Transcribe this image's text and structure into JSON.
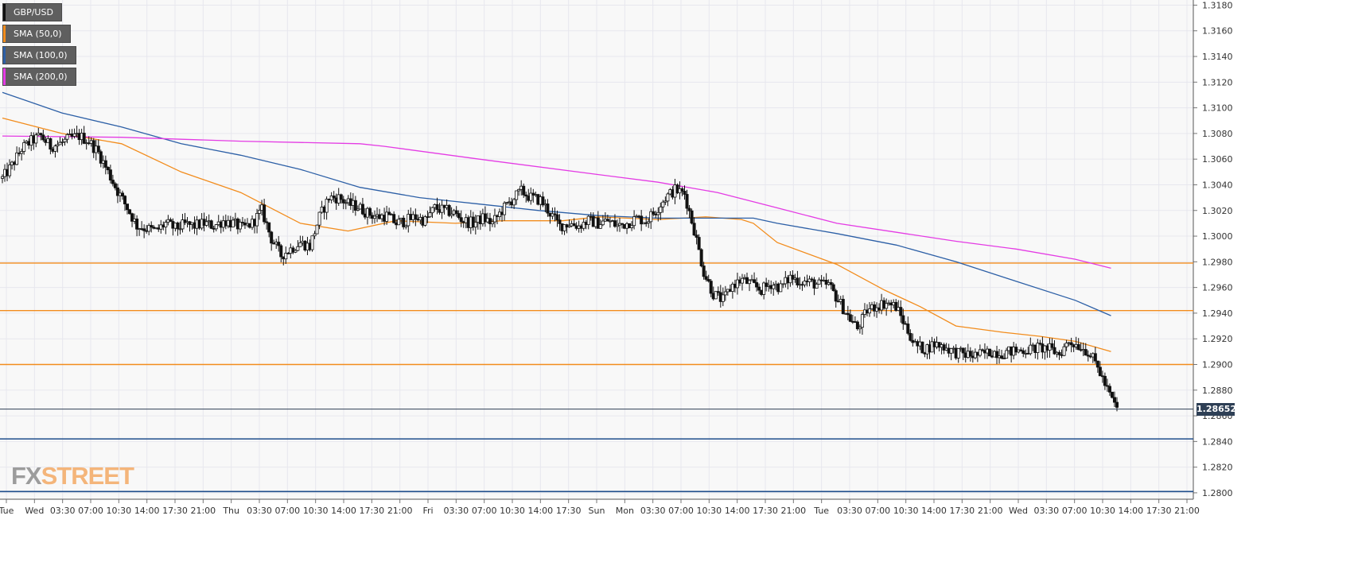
{
  "instrument": "GBP/USD",
  "legend": [
    {
      "label": "GBP/USD",
      "color": "#111111"
    },
    {
      "label": "SMA (50,0)",
      "color": "#f28c1c"
    },
    {
      "label": "SMA (100,0)",
      "color": "#2c5fa6"
    },
    {
      "label": "SMA (200,0)",
      "color": "#e43be4"
    }
  ],
  "watermark": {
    "fx": "FX",
    "street": "STREET"
  },
  "last_price_label": "1.28652",
  "colors": {
    "background": "#f8f8f8",
    "grid": "#e7e7ee",
    "candle_up": "#ffffff",
    "candle_down": "#111111",
    "sma50": "#f28c1c",
    "sma100": "#2c5fa6",
    "sma200": "#e43be4",
    "resistance": "#f28c1c",
    "support": "#1f4e8c"
  },
  "chart_data": {
    "type": "candlestick",
    "title": "",
    "ylim": [
      1.2795,
      1.3184
    ],
    "y_ticks": [
      "1.2800",
      "1.2820",
      "1.2840",
      "1.2860",
      "1.2880",
      "1.2900",
      "1.2920",
      "1.2940",
      "1.2960",
      "1.2980",
      "1.3000",
      "1.3020",
      "1.3040",
      "1.3060",
      "1.3080",
      "1.3100",
      "1.3120",
      "1.3140",
      "1.3160",
      "1.3180"
    ],
    "x_ticks": [
      "Tue",
      "Wed",
      "03:30",
      "07:00",
      "10:30",
      "14:00",
      "17:30",
      "21:00",
      "Thu",
      "03:30",
      "07:00",
      "10:30",
      "14:00",
      "17:30",
      "21:00",
      "Fri",
      "03:30",
      "07:00",
      "10:30",
      "14:00",
      "17:30",
      "Sun",
      "Mon",
      "03:30",
      "07:00",
      "10:30",
      "14:00",
      "17:30",
      "21:00",
      "Tue",
      "03:30",
      "07:00",
      "10:30",
      "14:00",
      "17:30",
      "21:00",
      "Wed",
      "03:30",
      "07:00",
      "10:30",
      "14:00",
      "17:30",
      "21:00"
    ],
    "last_price": 1.28652,
    "horizontal_levels": [
      {
        "value": 1.2979,
        "kind": "resistance"
      },
      {
        "value": 1.2942,
        "kind": "resistance"
      },
      {
        "value": 1.29,
        "kind": "resistance"
      },
      {
        "value": 1.2842,
        "kind": "support"
      },
      {
        "value": 1.2801,
        "kind": "support"
      }
    ],
    "close_path": [
      1.3045,
      1.3055,
      1.3068,
      1.3074,
      1.3078,
      1.307,
      1.3072,
      1.3076,
      1.3078,
      1.3074,
      1.3065,
      1.305,
      1.3035,
      1.3022,
      1.3008,
      1.3006,
      1.3004,
      1.301,
      1.3006,
      1.3009,
      1.3008,
      1.301,
      1.3008,
      1.3012,
      1.301,
      1.3006,
      1.301,
      1.302,
      1.2998,
      1.2985,
      1.299,
      1.2995,
      1.2992,
      1.3015,
      1.303,
      1.303,
      1.3025,
      1.3023,
      1.3018,
      1.3015,
      1.3016,
      1.301,
      1.3012,
      1.3015,
      1.3012,
      1.3022,
      1.302,
      1.3018,
      1.3012,
      1.301,
      1.3014,
      1.301,
      1.302,
      1.3028,
      1.3035,
      1.303,
      1.3028,
      1.3018,
      1.3008,
      1.301,
      1.3008,
      1.3012,
      1.301,
      1.3012,
      1.3008,
      1.301,
      1.3014,
      1.3012,
      1.302,
      1.303,
      1.3036,
      1.3033,
      1.3005,
      1.2972,
      1.2955,
      1.295,
      1.2962,
      1.2966,
      1.2962,
      1.2958,
      1.2963,
      1.296,
      1.2968,
      1.2965,
      1.2964,
      1.2962,
      1.2962,
      1.295,
      1.2938,
      1.2928,
      1.2942,
      1.2946,
      1.2948,
      1.2945,
      1.293,
      1.2915,
      1.2912,
      1.2916,
      1.2914,
      1.291,
      1.2908,
      1.2907,
      1.2908,
      1.291,
      1.2909,
      1.291,
      1.2911,
      1.2912,
      1.2913,
      1.2912,
      1.2908,
      1.2918,
      1.2915,
      1.291,
      1.2898,
      1.288,
      1.2865
    ],
    "series": [
      {
        "name": "SMA (50,0)",
        "x_frac": [
          0,
          0.05,
          0.1,
          0.15,
          0.2,
          0.25,
          0.29,
          0.33,
          0.38,
          0.42,
          0.47,
          0.5,
          0.55,
          0.59,
          0.62,
          0.63,
          0.65,
          0.7,
          0.74,
          0.77,
          0.8,
          0.84,
          0.87,
          0.9,
          0.93
        ],
        "values": [
          1.3092,
          1.308,
          1.3072,
          1.305,
          1.3034,
          1.301,
          1.3004,
          1.3012,
          1.301,
          1.3012,
          1.3012,
          1.3015,
          1.3013,
          1.3015,
          1.3013,
          1.301,
          1.2995,
          1.2978,
          1.2958,
          1.2945,
          1.293,
          1.2925,
          1.2922,
          1.2918,
          1.291
        ]
      },
      {
        "name": "SMA (100,0)",
        "x_frac": [
          0,
          0.05,
          0.1,
          0.15,
          0.2,
          0.25,
          0.3,
          0.35,
          0.4,
          0.45,
          0.5,
          0.55,
          0.6,
          0.63,
          0.65,
          0.7,
          0.75,
          0.8,
          0.85,
          0.9,
          0.93
        ],
        "values": [
          1.3112,
          1.3096,
          1.3085,
          1.3072,
          1.3063,
          1.3052,
          1.3038,
          1.303,
          1.3025,
          1.302,
          1.3016,
          1.3014,
          1.3014,
          1.3014,
          1.301,
          1.3002,
          1.2993,
          1.298,
          1.2965,
          1.295,
          1.2938
        ]
      },
      {
        "name": "SMA (200,0)",
        "x_frac": [
          0,
          0.1,
          0.2,
          0.3,
          0.32,
          0.4,
          0.5,
          0.55,
          0.6,
          0.65,
          0.7,
          0.75,
          0.8,
          0.85,
          0.9,
          0.93
        ],
        "values": [
          1.3078,
          1.3077,
          1.3074,
          1.3072,
          1.307,
          1.306,
          1.3048,
          1.3042,
          1.3034,
          1.3022,
          1.301,
          1.3003,
          1.2996,
          1.299,
          1.2982,
          1.2975
        ]
      }
    ]
  }
}
